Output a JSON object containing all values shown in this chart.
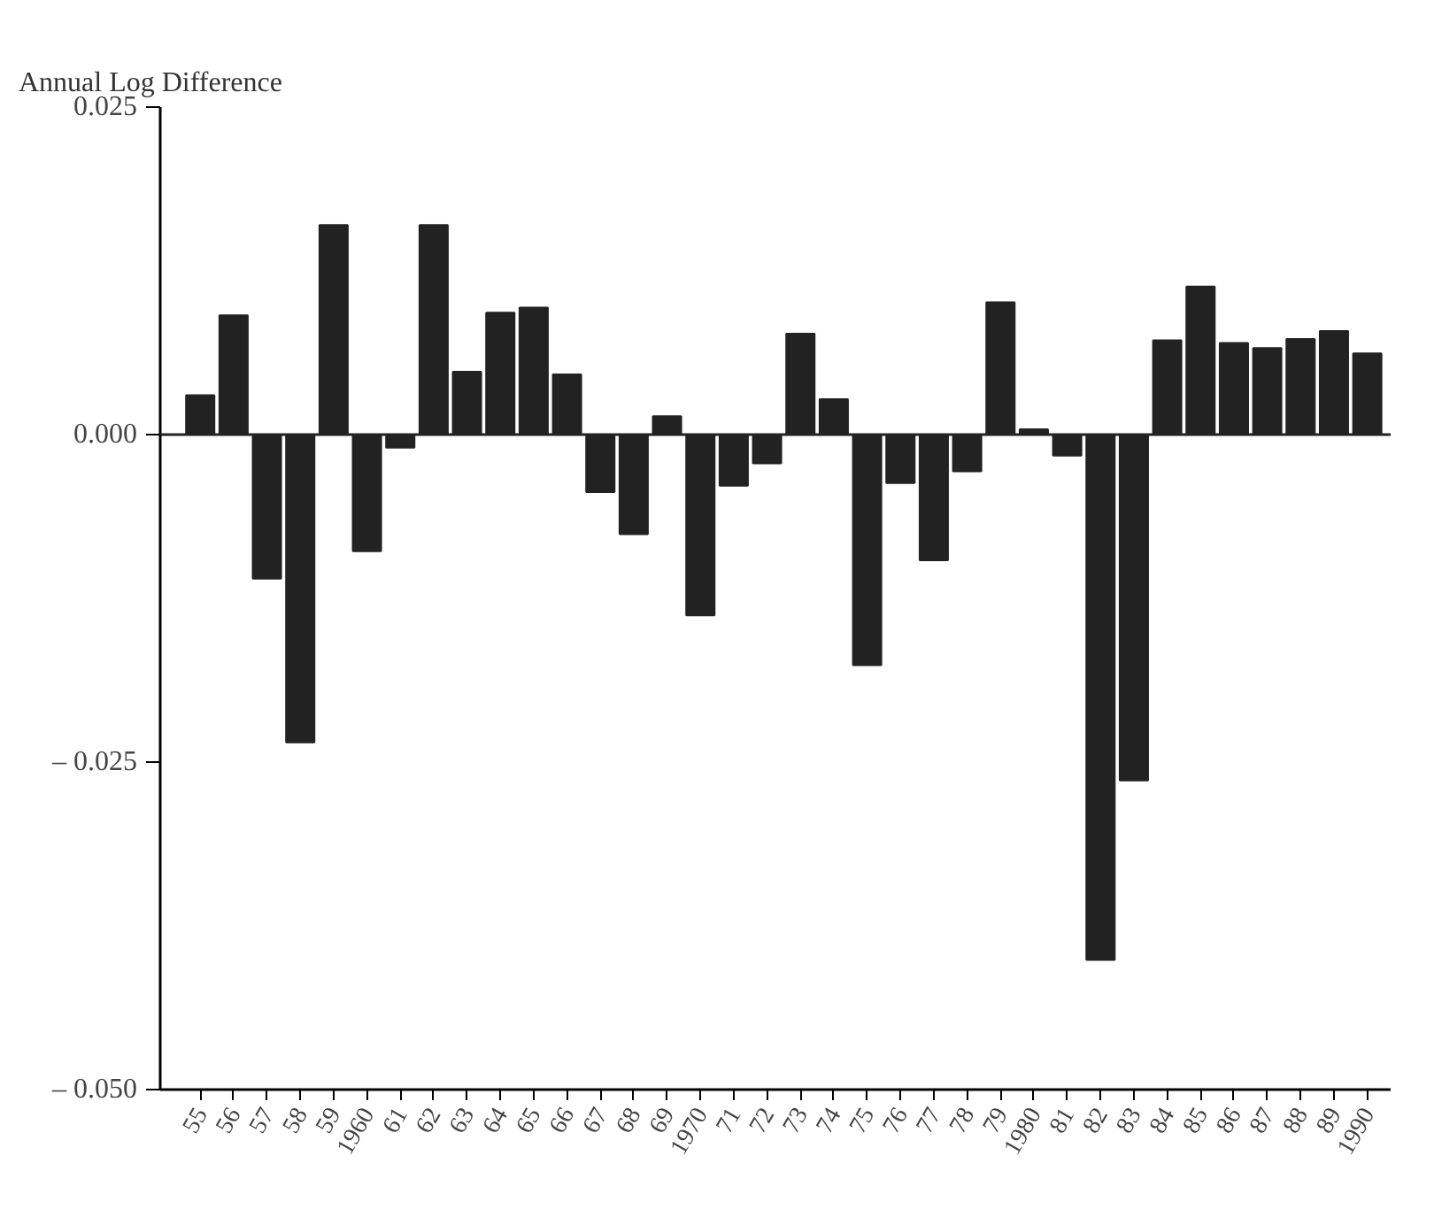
{
  "chart_data": {
    "type": "bar",
    "ylabel": "Annual Log Difference",
    "categories": [
      "55",
      "56",
      "57",
      "58",
      "59",
      "1960",
      "61",
      "62",
      "63",
      "64",
      "65",
      "66",
      "67",
      "68",
      "69",
      "1970",
      "71",
      "72",
      "73",
      "74",
      "75",
      "76",
      "77",
      "78",
      "79",
      "1980",
      "81",
      "82",
      "83",
      "84",
      "85",
      "86",
      "87",
      "88",
      "89",
      "1990"
    ],
    "values": [
      0.003,
      0.0091,
      -0.011,
      -0.0235,
      0.016,
      -0.0089,
      -0.001,
      0.016,
      0.0048,
      0.0093,
      0.0097,
      0.0046,
      -0.0044,
      -0.0076,
      0.0014,
      -0.0138,
      -0.0039,
      -0.0022,
      0.0077,
      0.0027,
      -0.0176,
      -0.0037,
      -0.0096,
      -0.0028,
      0.0101,
      0.0004,
      -0.0016,
      -0.0401,
      -0.0264,
      0.0072,
      0.0113,
      0.007,
      0.0066,
      0.0073,
      0.0079,
      0.0062
    ],
    "color": "#222222",
    "ylim": [
      -0.05,
      0.025
    ],
    "yticks": [
      {
        "value": 0.025,
        "label": "0.025"
      },
      {
        "value": 0.0,
        "label": "0.000"
      },
      {
        "value": -0.025,
        "label": "– 0.025"
      },
      {
        "value": -0.05,
        "label": "– 0.050"
      }
    ],
    "ref_lines": [
      {
        "axis": "y",
        "value": 0,
        "label": null,
        "color": "#222222"
      }
    ],
    "grid": false
  }
}
